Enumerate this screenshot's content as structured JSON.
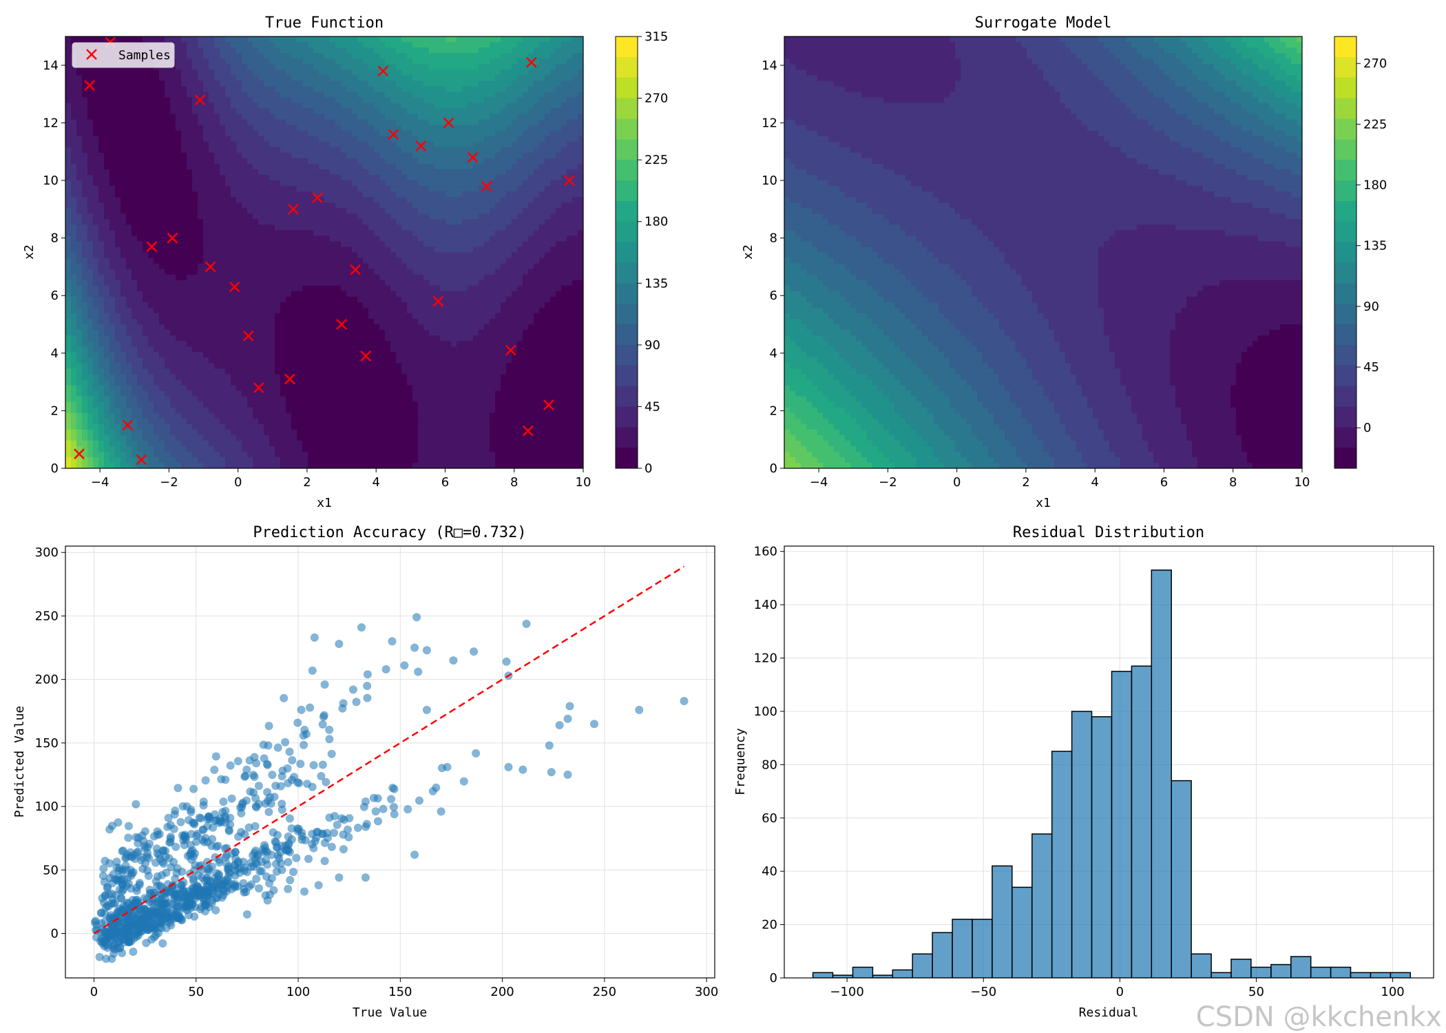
{
  "watermark": "CSDN @kkchenkx",
  "colormap": [
    "#440154",
    "#482475",
    "#414487",
    "#355f8d",
    "#2a788e",
    "#21918c",
    "#22a884",
    "#44bf70",
    "#7ad151",
    "#bddf26",
    "#fde725"
  ],
  "chart_data": [
    {
      "type": "heatmap",
      "title": "True Function",
      "xlabel": "x1",
      "ylabel": "x2",
      "xlim": [
        -5,
        10
      ],
      "ylim": [
        0,
        15
      ],
      "xticks": [
        -4,
        -2,
        0,
        2,
        4,
        6,
        8,
        10
      ],
      "yticks": [
        0,
        2,
        4,
        6,
        8,
        10,
        12,
        14
      ],
      "colorbar": {
        "min": 0,
        "max": 315,
        "ticks": [
          0,
          45,
          90,
          135,
          180,
          225,
          270,
          315
        ]
      },
      "legend": {
        "label": "Samples",
        "marker": "x",
        "color": "#ff0000",
        "position": "upper-left"
      },
      "samples": {
        "x": [
          -4.6,
          -4.3,
          -3.7,
          -3.2,
          -2.8,
          -2.5,
          -1.9,
          -1.1,
          -0.8,
          -0.1,
          0.3,
          0.6,
          1.5,
          1.6,
          2.3,
          3.0,
          3.4,
          3.7,
          4.2,
          4.5,
          5.3,
          5.8,
          6.1,
          6.8,
          7.2,
          7.9,
          8.4,
          8.5,
          9.0,
          9.6
        ],
        "y": [
          0.5,
          13.3,
          14.8,
          1.5,
          0.3,
          7.7,
          8.0,
          12.8,
          7.0,
          6.3,
          4.6,
          2.8,
          3.1,
          9.0,
          9.4,
          5.0,
          6.9,
          3.9,
          13.8,
          11.6,
          11.2,
          5.8,
          12.0,
          10.8,
          9.8,
          4.1,
          1.3,
          14.1,
          2.2,
          10.0
        ]
      }
    },
    {
      "type": "heatmap",
      "title": "Surrogate Model",
      "xlabel": "x1",
      "ylabel": "x2",
      "xlim": [
        -5,
        10
      ],
      "ylim": [
        0,
        15
      ],
      "xticks": [
        -4,
        -2,
        0,
        2,
        4,
        6,
        8,
        10
      ],
      "yticks": [
        0,
        2,
        4,
        6,
        8,
        10,
        12,
        14
      ],
      "colorbar": {
        "min": -30,
        "max": 290,
        "ticks": [
          0,
          45,
          90,
          135,
          180,
          225,
          270
        ]
      }
    },
    {
      "type": "scatter",
      "title": "Prediction Accuracy (R□=0.732)",
      "xlabel": "True Value",
      "ylabel": "Predicted Value",
      "xlim": [
        -14,
        304
      ],
      "ylim": [
        -35,
        305
      ],
      "xticks": [
        0,
        50,
        100,
        150,
        200,
        250,
        300
      ],
      "yticks": [
        0,
        50,
        100,
        150,
        200,
        250,
        300
      ],
      "grid": true,
      "reference_line": {
        "from": [
          0,
          0
        ],
        "to": [
          289,
          289
        ],
        "color": "#ff0000",
        "style": "dashed"
      },
      "outliers": {
        "x": [
          158,
          131,
          108,
          120,
          146,
          186,
          157,
          202,
          163,
          134,
          152,
          143,
          176,
          107,
          113,
          203,
          223,
          267,
          289,
          245,
          233,
          228,
          232,
          232,
          224,
          210,
          203,
          173,
          163,
          166,
          170,
          157,
          133,
          120,
          110,
          96,
          113,
          103,
          95,
          92,
          88,
          75,
          84,
          76,
          85
        ],
        "y": [
          249,
          241,
          233,
          228,
          230,
          222,
          225,
          214,
          223,
          204,
          211,
          208,
          215,
          207,
          196,
          203,
          148,
          176,
          183,
          165,
          179,
          164,
          169,
          125,
          127,
          129,
          131,
          131,
          176,
          112,
          96,
          62,
          44,
          44,
          38,
          42,
          57,
          33,
          35,
          69,
          34,
          15,
          30,
          37,
          26
        ]
      },
      "point_count": 1000
    },
    {
      "type": "bar",
      "title": "Residual Distribution",
      "xlabel": "Residual",
      "ylabel": "Frequency",
      "xlim": [
        -123,
        115
      ],
      "ylim": [
        0,
        162
      ],
      "xticks": [
        -100,
        -50,
        0,
        50,
        100
      ],
      "yticks": [
        0,
        20,
        40,
        60,
        80,
        100,
        120,
        140,
        160
      ],
      "grid": true,
      "bins": [
        -112.5,
        -105.2,
        -97.9,
        -90.6,
        -83.3,
        -76.0,
        -68.7,
        -61.4,
        -54.1,
        -46.8,
        -39.5,
        -32.2,
        -24.9,
        -17.6,
        -10.3,
        -3.0,
        4.3,
        11.6,
        18.9,
        26.2,
        33.5,
        40.8,
        48.1,
        55.4,
        62.7,
        70.0,
        77.3,
        84.6,
        91.9,
        99.2,
        106.5
      ],
      "counts": [
        2,
        1,
        4,
        1,
        3,
        9,
        17,
        22,
        22,
        42,
        34,
        54,
        85,
        100,
        98,
        115,
        117,
        153,
        74,
        9,
        2,
        7,
        4,
        5,
        8,
        4,
        4,
        2,
        2,
        2
      ]
    }
  ]
}
